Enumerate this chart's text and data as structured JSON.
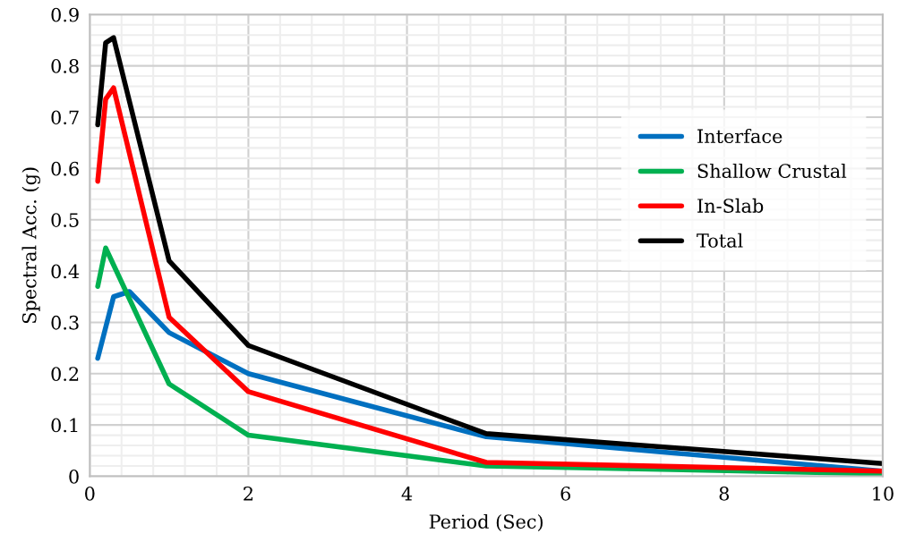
{
  "chart_data": {
    "type": "line",
    "xlabel": "Period (Sec)",
    "ylabel": "Spectral Acc. (g)",
    "xlim": [
      0,
      10
    ],
    "xticks": [
      0,
      2,
      4,
      6,
      8,
      10
    ],
    "ylim": [
      0,
      0.9
    ],
    "yticks": [
      0,
      0.1,
      0.2,
      0.3,
      0.4,
      0.5,
      0.6,
      0.7,
      0.8,
      0.9
    ],
    "grid": true,
    "legend": "right",
    "marker": "none",
    "line_style": "solid",
    "series": [
      {
        "name": "Interface",
        "color": "#0070c0",
        "x": [
          0.1,
          0.3,
          0.5,
          1,
          2,
          5,
          10
        ],
        "values": [
          0.23,
          0.35,
          0.36,
          0.28,
          0.2,
          0.077,
          0.01
        ]
      },
      {
        "name": "Shallow Crustal",
        "color": "#00b050",
        "x": [
          0.1,
          0.2,
          1,
          2,
          5,
          10
        ],
        "values": [
          0.37,
          0.445,
          0.18,
          0.08,
          0.02,
          0.005
        ]
      },
      {
        "name": "In-Slab",
        "color": "#ff0000",
        "x": [
          0.1,
          0.2,
          0.3,
          1,
          2,
          5,
          10
        ],
        "values": [
          0.575,
          0.735,
          0.757,
          0.31,
          0.165,
          0.027,
          0.01
        ]
      },
      {
        "name": "Total",
        "color": "#000000",
        "x": [
          0.1,
          0.2,
          0.3,
          1,
          2,
          5,
          10
        ],
        "values": [
          0.685,
          0.845,
          0.855,
          0.42,
          0.255,
          0.083,
          0.025
        ]
      }
    ]
  }
}
